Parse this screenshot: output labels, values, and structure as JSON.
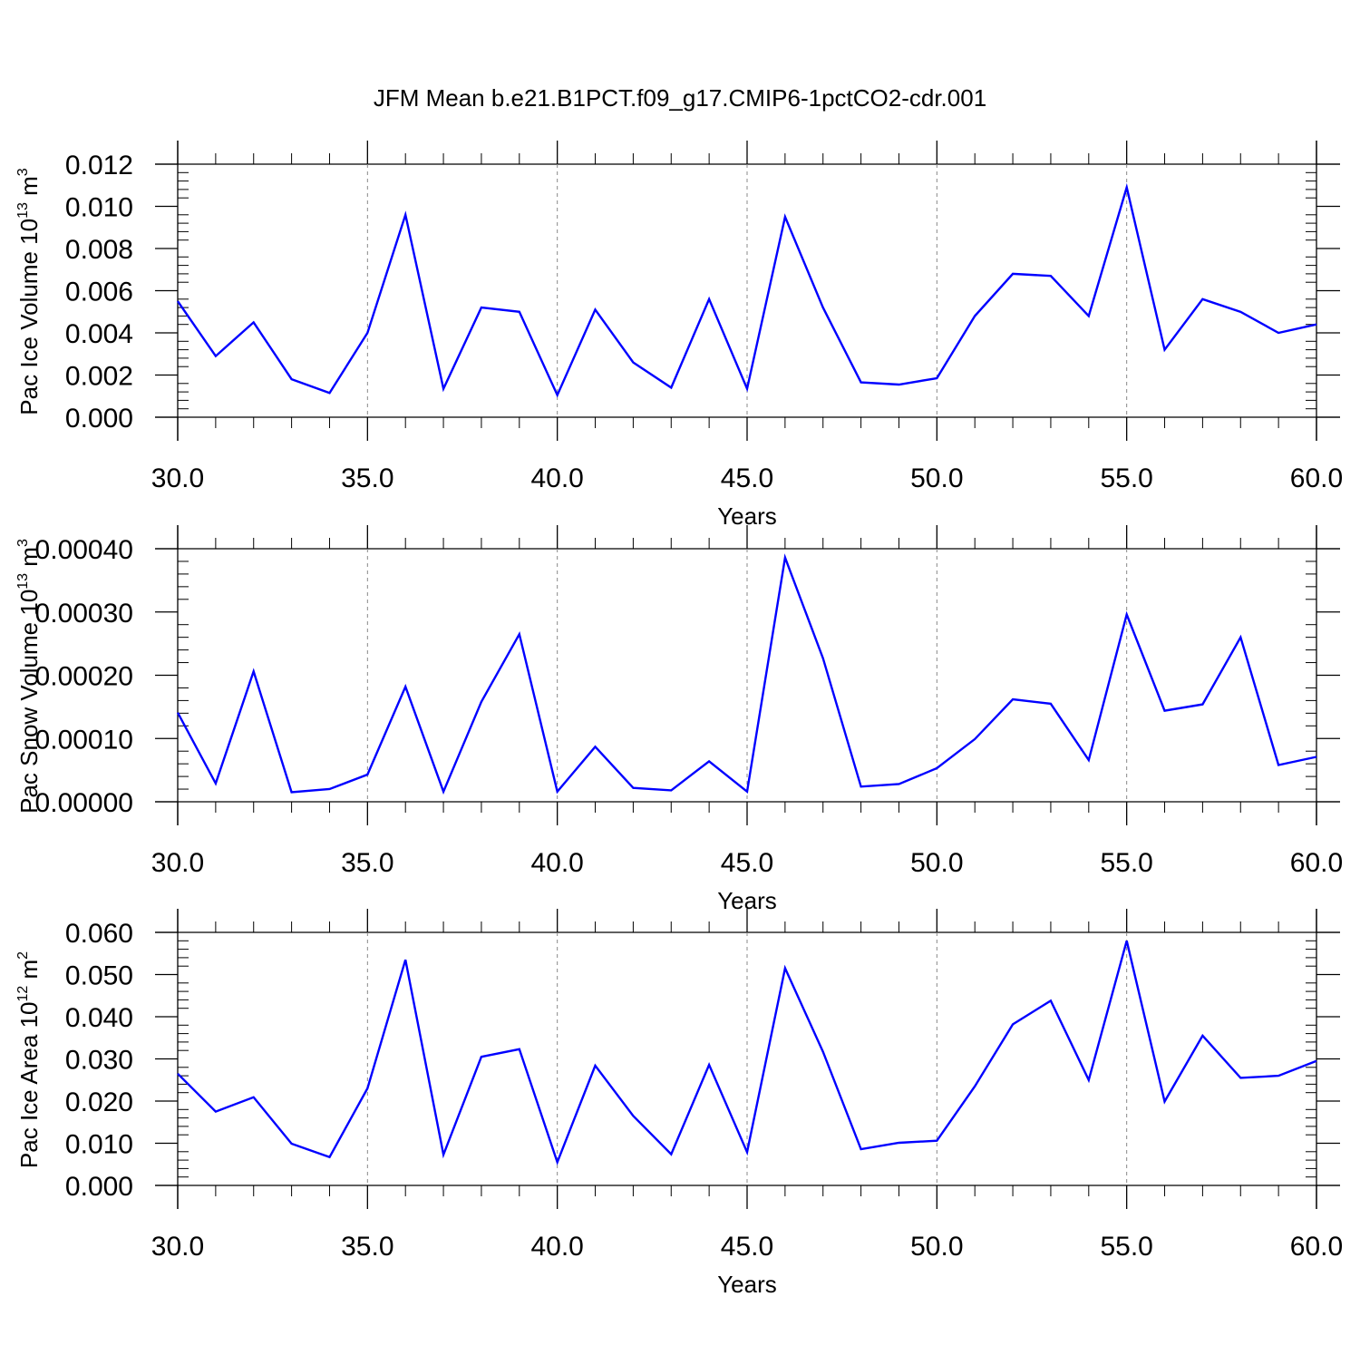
{
  "title": "JFM Mean b.e21.B1PCT.f09_g17.CMIP6-1pctCO2-cdr.001",
  "colors": {
    "line": "#0000ff",
    "axis": "#000000",
    "grid": "#888888",
    "background": "#ffffff"
  },
  "chart_data": [
    {
      "type": "line",
      "ylabel": {
        "text": "Pac Ice Volume 10",
        "sup": "13",
        "unit": " m",
        "unit_sup": "3"
      },
      "xlabel": "Years",
      "xlim": [
        30,
        60
      ],
      "ylim": [
        0,
        0.012
      ],
      "xticks": [
        "30.0",
        "35.0",
        "40.0",
        "45.0",
        "50.0",
        "55.0",
        "60.0"
      ],
      "yticks": [
        "0.000",
        "0.002",
        "0.004",
        "0.006",
        "0.008",
        "0.010",
        "0.012"
      ],
      "grid": "vertical dashed lines at major x ticks",
      "series": [
        {
          "x": [
            30,
            31,
            32,
            33,
            34,
            35,
            36,
            37,
            38,
            39,
            40,
            41,
            42,
            43,
            44,
            45,
            46,
            47,
            48,
            49,
            50,
            51,
            52,
            53,
            54,
            55,
            56,
            57,
            58,
            59,
            60
          ],
          "values": [
            0.0055,
            0.0029,
            0.0045,
            0.0018,
            0.00115,
            0.004,
            0.0096,
            0.00135,
            0.0052,
            0.005,
            0.00105,
            0.0051,
            0.0026,
            0.0014,
            0.0056,
            0.00135,
            0.0095,
            0.0052,
            0.00165,
            0.00155,
            0.00185,
            0.0048,
            0.0068,
            0.0067,
            0.0048,
            0.0109,
            0.0032,
            0.0056,
            0.005,
            0.004,
            0.0044
          ]
        }
      ]
    },
    {
      "type": "line",
      "ylabel": {
        "text": "Pac Snow Volume 10",
        "sup": "13",
        "unit": " m",
        "unit_sup": "3"
      },
      "xlabel": "Years",
      "xlim": [
        30,
        60
      ],
      "ylim": [
        0,
        0.0004
      ],
      "xticks": [
        "30.0",
        "35.0",
        "40.0",
        "45.0",
        "50.0",
        "55.0",
        "60.0"
      ],
      "yticks": [
        "0.00000",
        "0.00010",
        "0.00020",
        "0.00030",
        "0.00040"
      ],
      "grid": "vertical dashed lines at major x ticks",
      "series": [
        {
          "x": [
            30,
            31,
            32,
            33,
            34,
            35,
            36,
            37,
            38,
            39,
            40,
            41,
            42,
            43,
            44,
            45,
            46,
            47,
            48,
            49,
            50,
            51,
            52,
            53,
            54,
            55,
            56,
            57,
            58,
            59,
            60
          ],
          "values": [
            0.000141,
            2.9e-05,
            0.000206,
            1.5e-05,
            2e-05,
            4.3e-05,
            0.000182,
            1.6e-05,
            0.000158,
            0.000265,
            1.6e-05,
            8.7e-05,
            2.2e-05,
            1.8e-05,
            6.4e-05,
            1.6e-05,
            0.000386,
            0.000227,
            2.4e-05,
            2.8e-05,
            5.3e-05,
            9.9e-05,
            0.000162,
            0.000155,
            6.6e-05,
            0.000296,
            0.000144,
            0.000154,
            0.00026,
            5.8e-05,
            7.1e-05
          ]
        }
      ]
    },
    {
      "type": "line",
      "ylabel": {
        "text": "Pac Ice Area 10",
        "sup": "12",
        "unit": " m",
        "unit_sup": "2"
      },
      "xlabel": "Years",
      "xlim": [
        30,
        60
      ],
      "ylim": [
        0,
        0.06
      ],
      "xticks": [
        "30.0",
        "35.0",
        "40.0",
        "45.0",
        "50.0",
        "55.0",
        "60.0"
      ],
      "yticks": [
        "0.000",
        "0.010",
        "0.020",
        "0.030",
        "0.040",
        "0.050",
        "0.060"
      ],
      "grid": "vertical dashed lines at major x ticks",
      "series": [
        {
          "x": [
            30,
            31,
            32,
            33,
            34,
            35,
            36,
            37,
            38,
            39,
            40,
            41,
            42,
            43,
            44,
            45,
            46,
            47,
            48,
            49,
            50,
            51,
            52,
            53,
            54,
            55,
            56,
            57,
            58,
            59,
            60
          ],
          "values": [
            0.0265,
            0.0175,
            0.0209,
            0.0099,
            0.0067,
            0.023,
            0.0535,
            0.0073,
            0.0305,
            0.0323,
            0.0055,
            0.0284,
            0.0165,
            0.0074,
            0.0286,
            0.0079,
            0.0515,
            0.0317,
            0.0086,
            0.0101,
            0.0106,
            0.0235,
            0.0382,
            0.0438,
            0.025,
            0.058,
            0.0199,
            0.0355,
            0.0255,
            0.026,
            0.0295
          ]
        }
      ]
    }
  ]
}
